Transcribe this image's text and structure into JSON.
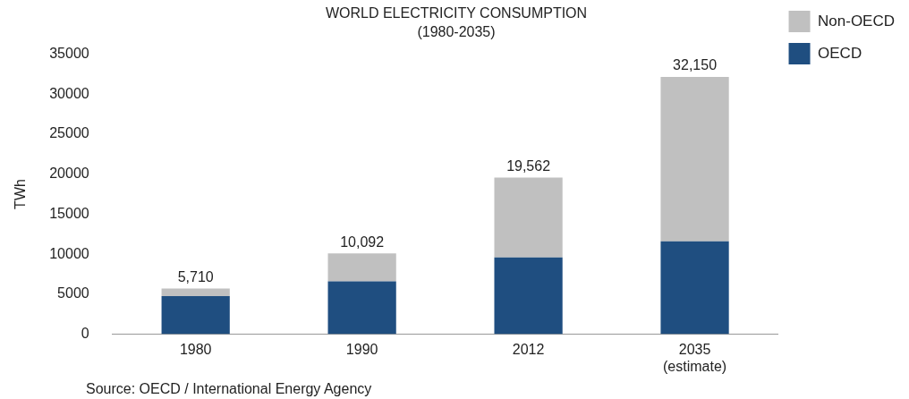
{
  "chart_data": {
    "type": "bar",
    "title": "WORLD ELECTRICITY CONSUMPTION",
    "subtitle": "(1980-2035)",
    "ylabel": "TWh",
    "categories": [
      "1980",
      "1990",
      "2012",
      "2035\n(estimate)"
    ],
    "stacked": true,
    "series": [
      {
        "name": "OECD",
        "color": "#1f4e80",
        "values": [
          4750,
          6600,
          9600,
          11600
        ]
      },
      {
        "name": "Non-OECD",
        "color": "#c0c0c0",
        "values": [
          960,
          3492,
          9962,
          20550
        ]
      }
    ],
    "totals": [
      "5,710",
      "10,092",
      "19,562",
      "32,150"
    ],
    "ylim": [
      0,
      35000
    ],
    "yticks": [
      0,
      5000,
      10000,
      15000,
      20000,
      25000,
      30000,
      35000
    ],
    "grid": false,
    "legend": "top right",
    "annotations": [
      "Source: OECD / International Energy Agency"
    ]
  }
}
